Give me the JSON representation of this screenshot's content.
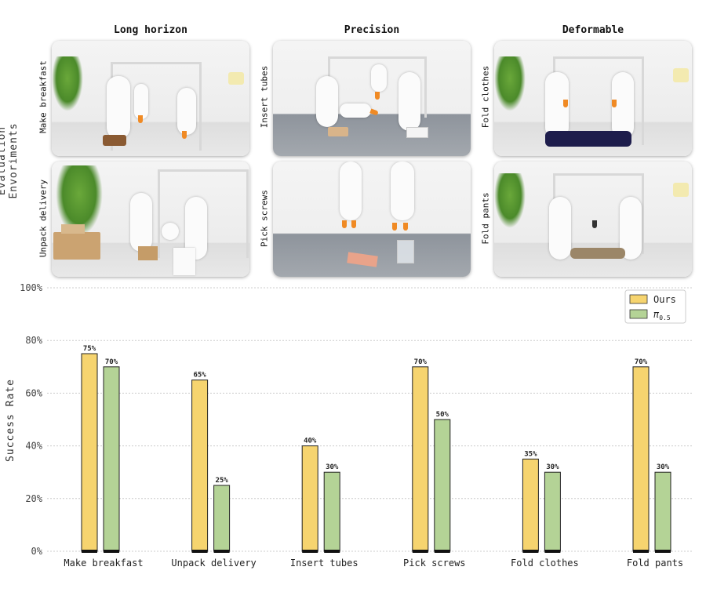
{
  "figure": {
    "side_title": "Evaluation Envoriments",
    "columns": [
      "Long horizon",
      "Precision",
      "Deformable"
    ],
    "photos": [
      {
        "label": "Make breakfast"
      },
      {
        "label": "Insert tubes"
      },
      {
        "label": "Fold clothes"
      },
      {
        "label": "Unpack delivery"
      },
      {
        "label": "Pick screws"
      },
      {
        "label": "Fold pants"
      }
    ]
  },
  "chart_data": {
    "type": "bar",
    "title": "",
    "xlabel": "",
    "ylabel": "Success Rate",
    "ylim": [
      0,
      100
    ],
    "yticks": [
      "0%",
      "20%",
      "40%",
      "60%",
      "80%",
      "100%"
    ],
    "grid": true,
    "legend": "top-right",
    "categories": [
      "Make breakfast",
      "Unpack delivery",
      "Insert tubes",
      "Pick screws",
      "Fold clothes",
      "Fold pants"
    ],
    "series": [
      {
        "name": "Ours",
        "color": "#f6d46f",
        "values": [
          75,
          65,
          40,
          70,
          35,
          70
        ],
        "labels": [
          "75%",
          "65%",
          "40%",
          "70%",
          "35%",
          "70%"
        ]
      },
      {
        "name": "π0.5",
        "name_main": "π",
        "name_sub": "0.5",
        "color": "#b4d396",
        "values": [
          70,
          25,
          30,
          50,
          30,
          30
        ],
        "labels": [
          "70%",
          "25%",
          "30%",
          "50%",
          "30%",
          "30%"
        ]
      }
    ]
  }
}
